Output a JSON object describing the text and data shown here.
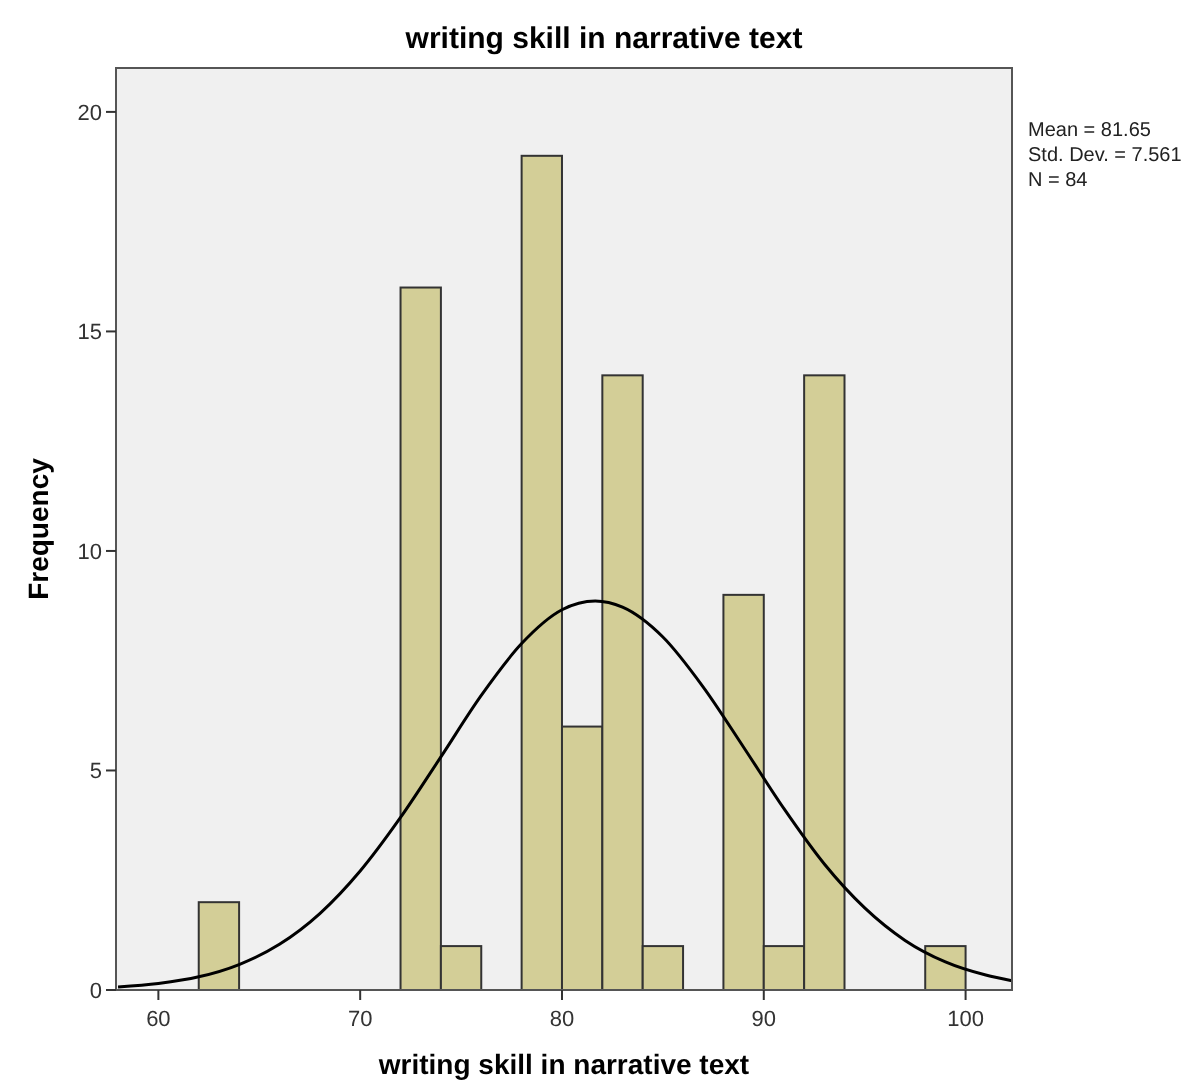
{
  "chart_data": {
    "type": "histogram",
    "title": "writing skill in narrative text",
    "xlabel": "writing skill in narrative text",
    "ylabel": "Frequency",
    "bins": [
      62,
      64,
      66,
      68,
      70,
      72,
      74,
      76,
      78,
      80,
      82,
      84,
      86,
      88,
      90,
      92,
      94,
      96,
      98,
      100
    ],
    "values": [
      2,
      0,
      0,
      0,
      0,
      16,
      1,
      0,
      19,
      6,
      14,
      1,
      0,
      9,
      1,
      14,
      0,
      0,
      1
    ],
    "color": "#d3ce97",
    "series": [
      {
        "type": "line",
        "color": "#000000",
        "x": [
          58,
          60,
          62,
          64,
          66,
          68,
          70,
          72,
          74,
          76,
          78,
          80,
          81.65,
          83,
          85,
          87,
          89,
          91,
          93,
          95,
          97,
          99,
          101,
          102.3
        ],
        "values": [
          0.07,
          0.15,
          0.3,
          0.58,
          1.04,
          1.74,
          2.71,
          3.93,
          5.31,
          6.71,
          7.89,
          8.66,
          8.86,
          8.72,
          8.04,
          6.9,
          5.53,
          4.13,
          2.87,
          1.87,
          1.13,
          0.64,
          0.34,
          0.21
        ]
      }
    ],
    "xlim": [
      57.9,
      102.3
    ],
    "xticks": [
      60,
      70,
      80,
      90,
      100
    ],
    "ylim": [
      0,
      21
    ],
    "yticks": [
      0,
      5,
      10,
      15,
      20
    ],
    "grid": false,
    "annotations": [
      "Mean = 81.65",
      "Std. Dev. = 7.561",
      "N = 84"
    ]
  }
}
